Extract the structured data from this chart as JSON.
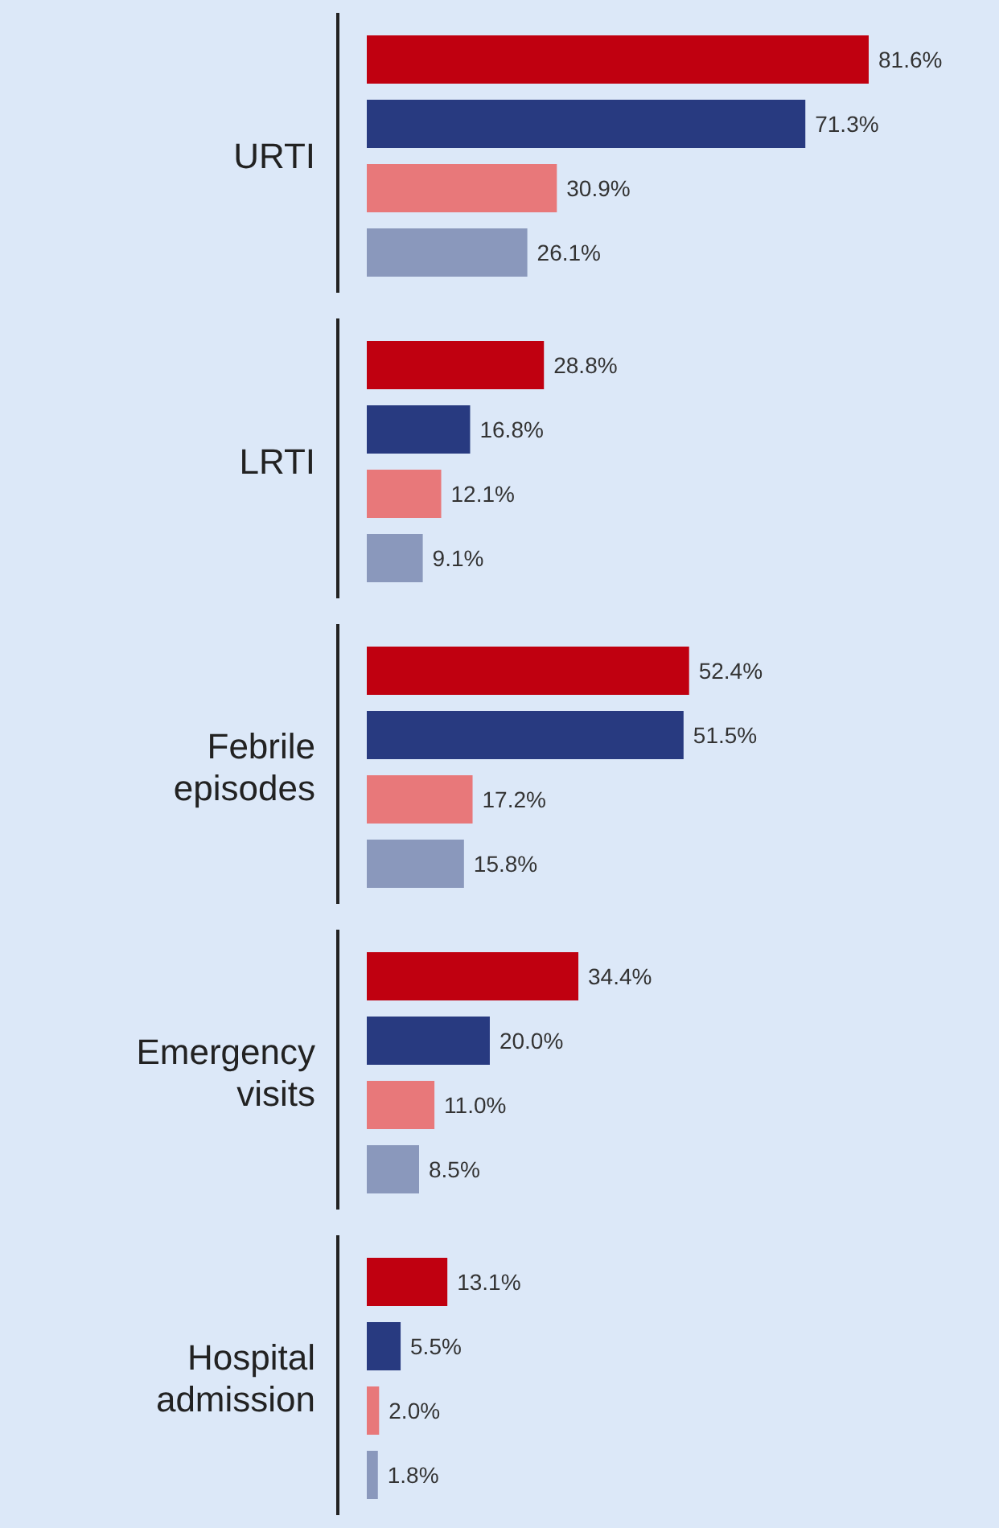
{
  "chart_data": {
    "type": "bar",
    "orientation": "horizontal",
    "categories": [
      "URTI",
      "LRTI",
      "Febrile episodes",
      "Emergency visits",
      "Hospital admission"
    ],
    "series": [
      {
        "color": "#c00010",
        "values": [
          81.6,
          28.8,
          52.4,
          34.4,
          13.1
        ],
        "value_labels": [
          "81.6%",
          "28.8%",
          "52.4%",
          "34.4%",
          "13.1%"
        ]
      },
      {
        "color": "#283a80",
        "values": [
          71.3,
          16.8,
          51.5,
          20.0,
          5.5
        ],
        "value_labels": [
          "71.3%",
          "16.8%",
          "51.5%",
          "20.0%",
          "5.5%"
        ]
      },
      {
        "color": "#e8787a",
        "values": [
          30.9,
          12.1,
          17.2,
          11.0,
          2.0
        ],
        "value_labels": [
          "30.9%",
          "12.1%",
          "17.2%",
          "11.0%",
          "2.0%"
        ]
      },
      {
        "color": "#8a98bc",
        "values": [
          26.1,
          9.1,
          15.8,
          8.5,
          1.8
        ],
        "value_labels": [
          "26.1%",
          "9.1%",
          "15.8%",
          "8.5%",
          "1.8%"
        ]
      }
    ]
  }
}
